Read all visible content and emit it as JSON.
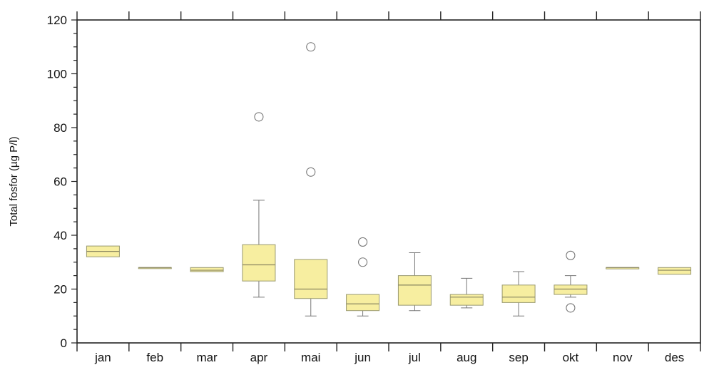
{
  "chart_data": {
    "type": "box",
    "title": "",
    "xlabel": "",
    "ylabel": "Total fosfor (µg P/l)",
    "ylim": [
      0,
      120
    ],
    "yticks": [
      0,
      20,
      40,
      60,
      80,
      100,
      120
    ],
    "grid": false,
    "legend": "none",
    "box_color": "#f7eea0",
    "box_stroke": "#9a9a70",
    "categories": [
      "jan",
      "feb",
      "mar",
      "apr",
      "mai",
      "jun",
      "jul",
      "aug",
      "sep",
      "okt",
      "nov",
      "des"
    ],
    "boxes": [
      {
        "category": "jan",
        "q1": 32,
        "median": 34,
        "q3": 36,
        "whisker_low": 32,
        "whisker_high": 36,
        "outliers": []
      },
      {
        "category": "feb",
        "q1": 28,
        "median": 28,
        "q3": 28,
        "whisker_low": 28,
        "whisker_high": 28,
        "outliers": []
      },
      {
        "category": "mar",
        "q1": 26.5,
        "median": 27,
        "q3": 28,
        "whisker_low": 26.5,
        "whisker_high": 28,
        "outliers": []
      },
      {
        "category": "apr",
        "q1": 23,
        "median": 29,
        "q3": 36.5,
        "whisker_low": 17,
        "whisker_high": 53,
        "outliers": [
          84
        ]
      },
      {
        "category": "mai",
        "q1": 16.5,
        "median": 20,
        "q3": 31,
        "whisker_low": 10,
        "whisker_high": 31,
        "outliers": [
          63.5,
          110
        ]
      },
      {
        "category": "jun",
        "q1": 12,
        "median": 14.5,
        "q3": 18,
        "whisker_low": 10,
        "whisker_high": 18,
        "outliers": [
          30,
          37.5
        ]
      },
      {
        "category": "jul",
        "q1": 14,
        "median": 21.5,
        "q3": 25,
        "whisker_low": 12,
        "whisker_high": 33.5,
        "outliers": []
      },
      {
        "category": "aug",
        "q1": 14,
        "median": 17,
        "q3": 18,
        "whisker_low": 13,
        "whisker_high": 24,
        "outliers": []
      },
      {
        "category": "sep",
        "q1": 15,
        "median": 17,
        "q3": 21.5,
        "whisker_low": 10,
        "whisker_high": 26.5,
        "outliers": []
      },
      {
        "category": "okt",
        "q1": 18,
        "median": 20,
        "q3": 21.5,
        "whisker_low": 17,
        "whisker_high": 25,
        "outliers": [
          13,
          32.5
        ]
      },
      {
        "category": "nov",
        "q1": 27.5,
        "median": 28,
        "q3": 28,
        "whisker_low": 27.5,
        "whisker_high": 28,
        "outliers": []
      },
      {
        "category": "des",
        "q1": 25.5,
        "median": 27,
        "q3": 28,
        "whisker_low": 25.5,
        "whisker_high": 28,
        "outliers": []
      }
    ]
  }
}
